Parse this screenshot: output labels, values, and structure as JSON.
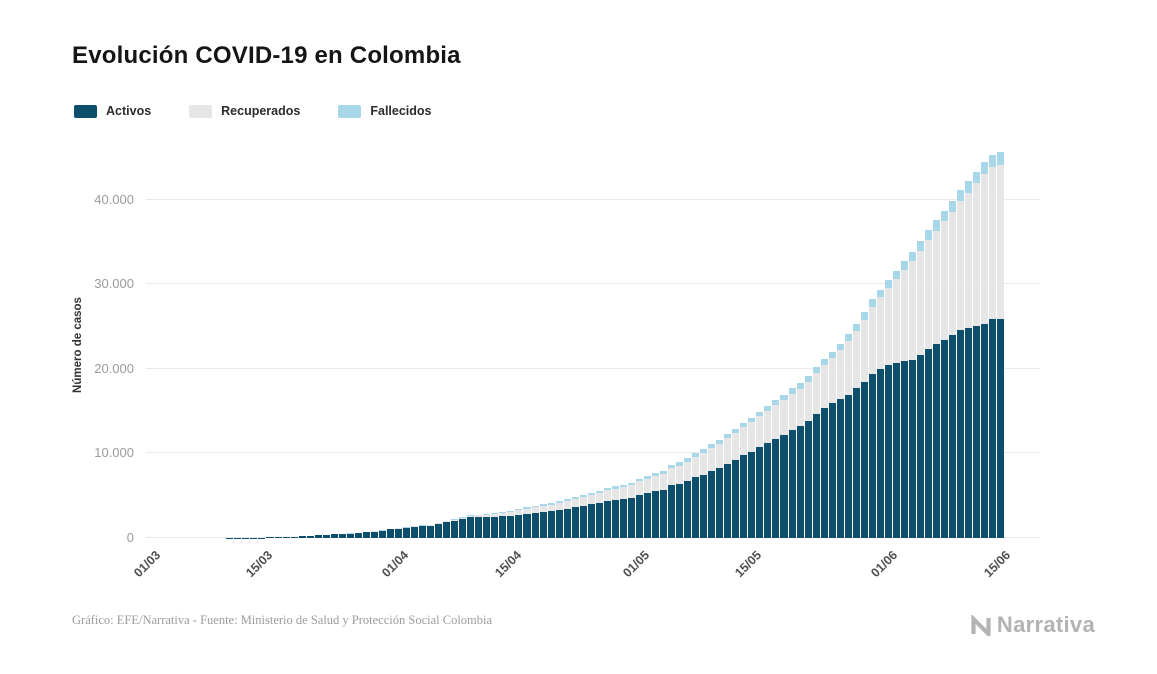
{
  "title": "Evolución COVID-19 en Colombia",
  "footer": {
    "credit": "Gráfico: EFE/Narrativa - Fuente: Ministerio de Salud y Protección Social Colombia",
    "logo_text": "Narrativa"
  },
  "chart_data": {
    "type": "bar",
    "stacked": true,
    "title": "Evolución COVID-19 en Colombia",
    "ylabel": "Número de casos",
    "x_range": [
      "01/03",
      "15/06"
    ],
    "x_frequency": "daily",
    "ylim": [
      0,
      46000
    ],
    "yticks": [
      0,
      10000,
      20000,
      30000,
      40000
    ],
    "ytick_labels": [
      "0",
      "10.000",
      "20.000",
      "30.000",
      "40.000"
    ],
    "xticks": [
      {
        "index": 0,
        "label": "01/03"
      },
      {
        "index": 14,
        "label": "15/03"
      },
      {
        "index": 31,
        "label": "01/04"
      },
      {
        "index": 45,
        "label": "15/04"
      },
      {
        "index": 61,
        "label": "01/05"
      },
      {
        "index": 75,
        "label": "15/05"
      },
      {
        "index": 92,
        "label": "01/06"
      },
      {
        "index": 106,
        "label": "15/06"
      }
    ],
    "legend_position": "top-left",
    "grid": true,
    "series": [
      {
        "name": "Activos",
        "color": "#0b4f6c",
        "values": [
          0,
          0,
          0,
          0,
          0,
          1,
          1,
          1,
          3,
          9,
          13,
          22,
          34,
          45,
          57,
          65,
          93,
          128,
          158,
          210,
          275,
          303,
          372,
          462,
          479,
          525,
          588,
          677,
          763,
          859,
          1009,
          1087,
          1181,
          1307,
          1368,
          1445,
          1626,
          1875,
          2015,
          2233,
          2435,
          2453,
          2475,
          2534,
          2588,
          2637,
          2772,
          2877,
          2971,
          3072,
          3156,
          3288,
          3418,
          3661,
          3845,
          4002,
          4151,
          4433,
          4524,
          4643,
          4775,
          5141,
          5292,
          5547,
          5719,
          6222,
          6416,
          6758,
          7198,
          7485,
          7895,
          8280,
          8772,
          9262,
          9773,
          10210,
          10759,
          11218,
          11763,
          12226,
          12801,
          13227,
          13806,
          14626,
          15394,
          15966,
          16421,
          16965,
          17685,
          18457,
          19454,
          20038,
          20510,
          20693,
          20919,
          21104,
          21646,
          22304,
          22901,
          23455,
          24011,
          24582,
          24779,
          25064,
          25344,
          25883,
          25900
        ]
      },
      {
        "name": "Recuperados",
        "color": "#e6e6e6",
        "values": [
          0,
          0,
          0,
          0,
          0,
          0,
          0,
          0,
          0,
          0,
          0,
          0,
          0,
          0,
          0,
          0,
          0,
          0,
          0,
          0,
          0,
          0,
          3,
          4,
          6,
          8,
          10,
          15,
          23,
          31,
          39,
          55,
          61,
          67,
          77,
          88,
          100,
          115,
          132,
          152,
          174,
          214,
          260,
          319,
          382,
          452,
          514,
          582,
          650,
          725,
          804,
          868,
          932,
          998,
          1064,
          1133,
          1192,
          1252,
          1313,
          1375,
          1439,
          1551,
          1666,
          1781,
          1896,
          2013,
          2148,
          2286,
          2424,
          2564,
          2705,
          2854,
          3004,
          3155,
          3307,
          3460,
          3618,
          3777,
          3936,
          4096,
          4256,
          4451,
          4650,
          4852,
          5057,
          5265,
          5801,
          6327,
          6837,
          7355,
          7875,
          8406,
          9014,
          9900,
          10750,
          11650,
          12350,
          12900,
          13450,
          14000,
          14600,
          15278,
          16064,
          16868,
          17690,
          17966,
          18242
        ]
      },
      {
        "name": "Fallecidos",
        "color": "#a9d7ea",
        "values": [
          0,
          0,
          0,
          0,
          0,
          0,
          0,
          0,
          0,
          0,
          0,
          0,
          0,
          0,
          0,
          0,
          0,
          0,
          0,
          0,
          2,
          3,
          3,
          4,
          6,
          6,
          10,
          10,
          12,
          16,
          17,
          19,
          25,
          32,
          40,
          46,
          54,
          64,
          76,
          88,
          100,
          109,
          117,
          126,
          135,
          144,
          153,
          162,
          171,
          180,
          189,
          200,
          211,
          222,
          233,
          244,
          254,
          264,
          274,
          284,
          293,
          314,
          327,
          340,
          358,
          378,
          395,
          412,
          429,
          446,
          463,
          479,
          496,
          513,
          530,
          546,
          562,
          579,
          596,
          613,
          630,
          652,
          675,
          699,
          724,
          750,
          781,
          812,
          844,
          876,
          907,
          939,
          969,
          1009,
          1045,
          1087,
          1124,
          1163,
          1205,
          1242,
          1281,
          1323,
          1363,
          1404,
          1445,
          1495,
          1545
        ]
      }
    ]
  }
}
